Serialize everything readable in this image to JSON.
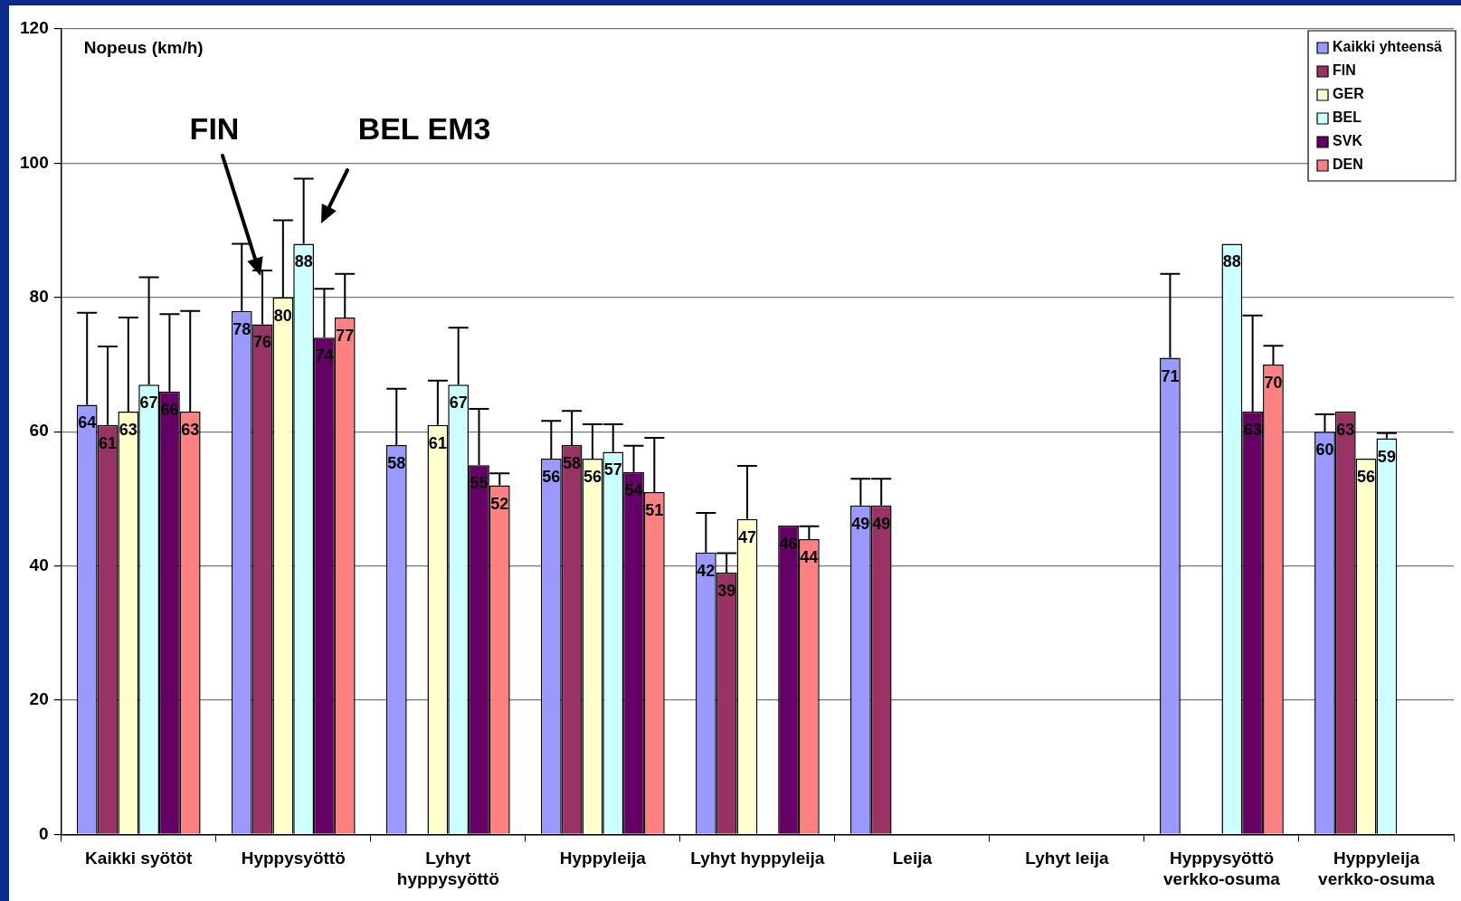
{
  "chart_data": {
    "type": "bar",
    "ylabel": "Nopeus (km/h)",
    "categories": [
      "Kaikki syötöt",
      "Hyppysyöttö",
      "Lyhyt hyppysyöttö",
      "Hyppyleija",
      "Lyhyt hyppyleija",
      "Leija",
      "Lyhyt leija",
      "Hyppysyöttö verkko-osuma",
      "Hyppyleija verkko-osuma"
    ],
    "series": [
      {
        "name": "Kaikki yhteensä",
        "color": "#9999ff",
        "values": [
          64,
          78,
          58,
          56,
          42,
          49,
          null,
          71,
          60
        ],
        "errors": [
          [
            64,
            77.7
          ],
          [
            78,
            88
          ],
          [
            58,
            66.4
          ],
          [
            56,
            61.6
          ],
          [
            42,
            47.9
          ],
          [
            49,
            53
          ],
          null,
          [
            71,
            83.5
          ],
          [
            60,
            62.6
          ]
        ]
      },
      {
        "name": "FIN",
        "color": "#993366",
        "values": [
          61,
          76,
          null,
          58,
          39,
          49,
          null,
          null,
          63
        ],
        "errors": [
          [
            61,
            72.7
          ],
          [
            76,
            84
          ],
          null,
          [
            58,
            63.1
          ],
          [
            39,
            41.9
          ],
          [
            49,
            53
          ],
          null,
          null,
          null
        ]
      },
      {
        "name": "GER",
        "color": "#ffffcc",
        "values": [
          63,
          80,
          61,
          56,
          47,
          null,
          null,
          null,
          56
        ],
        "errors": [
          [
            63,
            77
          ],
          [
            80,
            91.5
          ],
          [
            61,
            67.6
          ],
          [
            56,
            61.1
          ],
          [
            47,
            54.9
          ],
          null,
          null,
          null,
          null
        ]
      },
      {
        "name": "BEL",
        "color": "#ccffff",
        "values": [
          67,
          88,
          67,
          57,
          null,
          null,
          null,
          88,
          59
        ],
        "errors": [
          [
            67,
            83
          ],
          [
            88,
            97.7
          ],
          [
            67,
            75.5
          ],
          [
            57,
            61.1
          ],
          null,
          null,
          null,
          null,
          [
            59,
            59.8
          ]
        ]
      },
      {
        "name": "SVK",
        "color": "#660066",
        "values": [
          66,
          74,
          55,
          54,
          46,
          null,
          null,
          63,
          null
        ],
        "errors": [
          [
            66,
            77.5
          ],
          [
            74,
            81.3
          ],
          [
            55,
            63.4
          ],
          [
            54,
            57.9
          ],
          null,
          null,
          null,
          [
            63,
            77.3
          ],
          null
        ]
      },
      {
        "name": "DEN",
        "color": "#ff8080",
        "values": [
          63,
          77,
          52,
          51,
          44,
          null,
          null,
          70,
          null
        ],
        "errors": [
          [
            63,
            78
          ],
          [
            77,
            83.5
          ],
          [
            52,
            53.8
          ],
          [
            51,
            59.1
          ],
          [
            44,
            45.9
          ],
          null,
          null,
          [
            70,
            72.8
          ],
          null
        ]
      }
    ],
    "ylim": [
      0,
      120
    ],
    "yticks": [
      0,
      20,
      40,
      60,
      80,
      100,
      120
    ],
    "grid": "y",
    "legend": "top right",
    "data_labels": true,
    "annotations": [
      "FIN",
      "BEL EM3"
    ]
  }
}
